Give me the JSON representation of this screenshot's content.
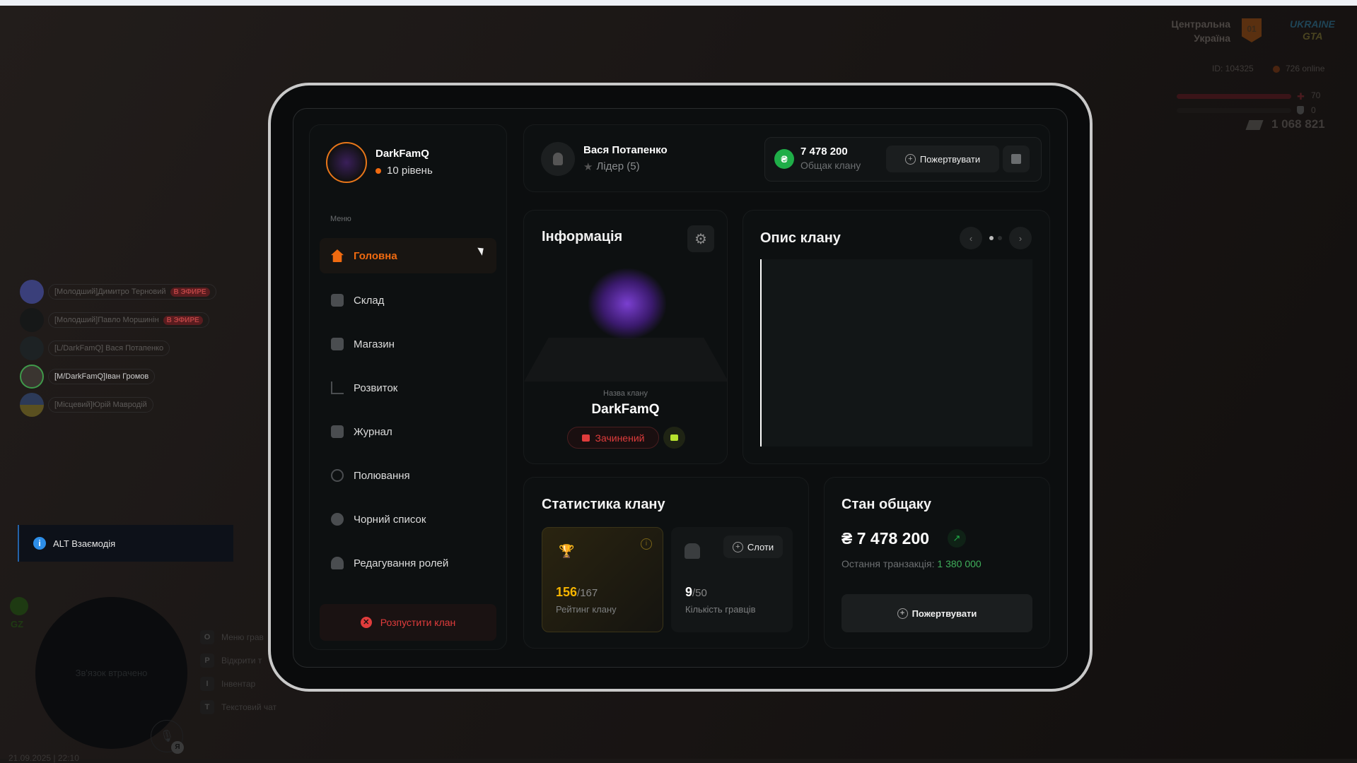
{
  "hud": {
    "region_line1": "Центральна",
    "region_line2": "Україна",
    "server_badge": "01",
    "logo_text": "UKRAINE GTA",
    "player_id": "ID: 104325",
    "online": "726 online",
    "health": "70",
    "health_level": 70,
    "armor": "0",
    "armor_level": 0,
    "money": "1 068 821"
  },
  "voice_chat": [
    {
      "name": "[Молодший]Димитро Терновий",
      "badge": "В ЭФИРЕ"
    },
    {
      "name": "[Молодший]Павло Моршинін",
      "badge": "В ЭФИРЕ"
    },
    {
      "name": "[L/DarkFamQ] Вася Потапенко"
    },
    {
      "name": "[M/DarkFamQ]Іван Громов"
    },
    {
      "name": "[Місцевий]Юрій Мавродій"
    }
  ],
  "interaction_hint": "ALT Взаємодія",
  "greenzone": "GZ",
  "radio": {
    "status": "Зв'язок втрачено",
    "mic_badge": "Я"
  },
  "hotkeys": [
    {
      "key": "O",
      "label": "Меню грав"
    },
    {
      "key": "P",
      "label": "Відкрити т"
    },
    {
      "key": "I",
      "label": "Інвентар"
    },
    {
      "key": "T",
      "label": "Текстовий чат"
    }
  ],
  "datetime": "21.09.2025 | 22:10",
  "sidebar": {
    "clan_name": "DarkFamQ",
    "level": "10 рівень",
    "menu_label": "Меню",
    "items": [
      {
        "label": "Головна",
        "icon": "home-icon",
        "active": true
      },
      {
        "label": "Склад",
        "icon": "warehouse-icon"
      },
      {
        "label": "Магазин",
        "icon": "basket-icon"
      },
      {
        "label": "Розвиток",
        "icon": "chart-icon"
      },
      {
        "label": "Журнал",
        "icon": "book-icon"
      },
      {
        "label": "Полювання",
        "icon": "crosshair-icon"
      },
      {
        "label": "Чорний список",
        "icon": "blacklist-icon"
      },
      {
        "label": "Редагування ролей",
        "icon": "user-gear-icon"
      }
    ],
    "disband": "Розпустити клан"
  },
  "header": {
    "user_name": "Вася Потапенко",
    "role": "Лідер (5)",
    "balance": "7 478 200",
    "balance_label": "Общак клану",
    "donate": "Пожертвувати",
    "currency": "₴"
  },
  "info": {
    "title": "Інформація",
    "name_label": "Назва клану",
    "name": "DarkFamQ",
    "status": "Зачинений"
  },
  "description": {
    "title": "Опис клану",
    "page": 1,
    "pages": 2
  },
  "stats": {
    "title": "Статистика клану",
    "rating": "156",
    "rating_total": "/167",
    "rating_label": "Рейтинг клану",
    "players": "9",
    "players_total": "/50",
    "players_label": "Кількість гравців",
    "slots": "Слоти"
  },
  "treasury": {
    "title": "Стан общаку",
    "amount": "₴ 7 478 200",
    "last_label": "Остання транзакція:",
    "last_value": "1 380 000",
    "donate": "Пожертвувати"
  },
  "colors": {
    "accent": "#f06a10",
    "danger": "#e03c3c",
    "success": "#1fae48",
    "gold": "#f5b400",
    "lime": "#b6e22e"
  }
}
